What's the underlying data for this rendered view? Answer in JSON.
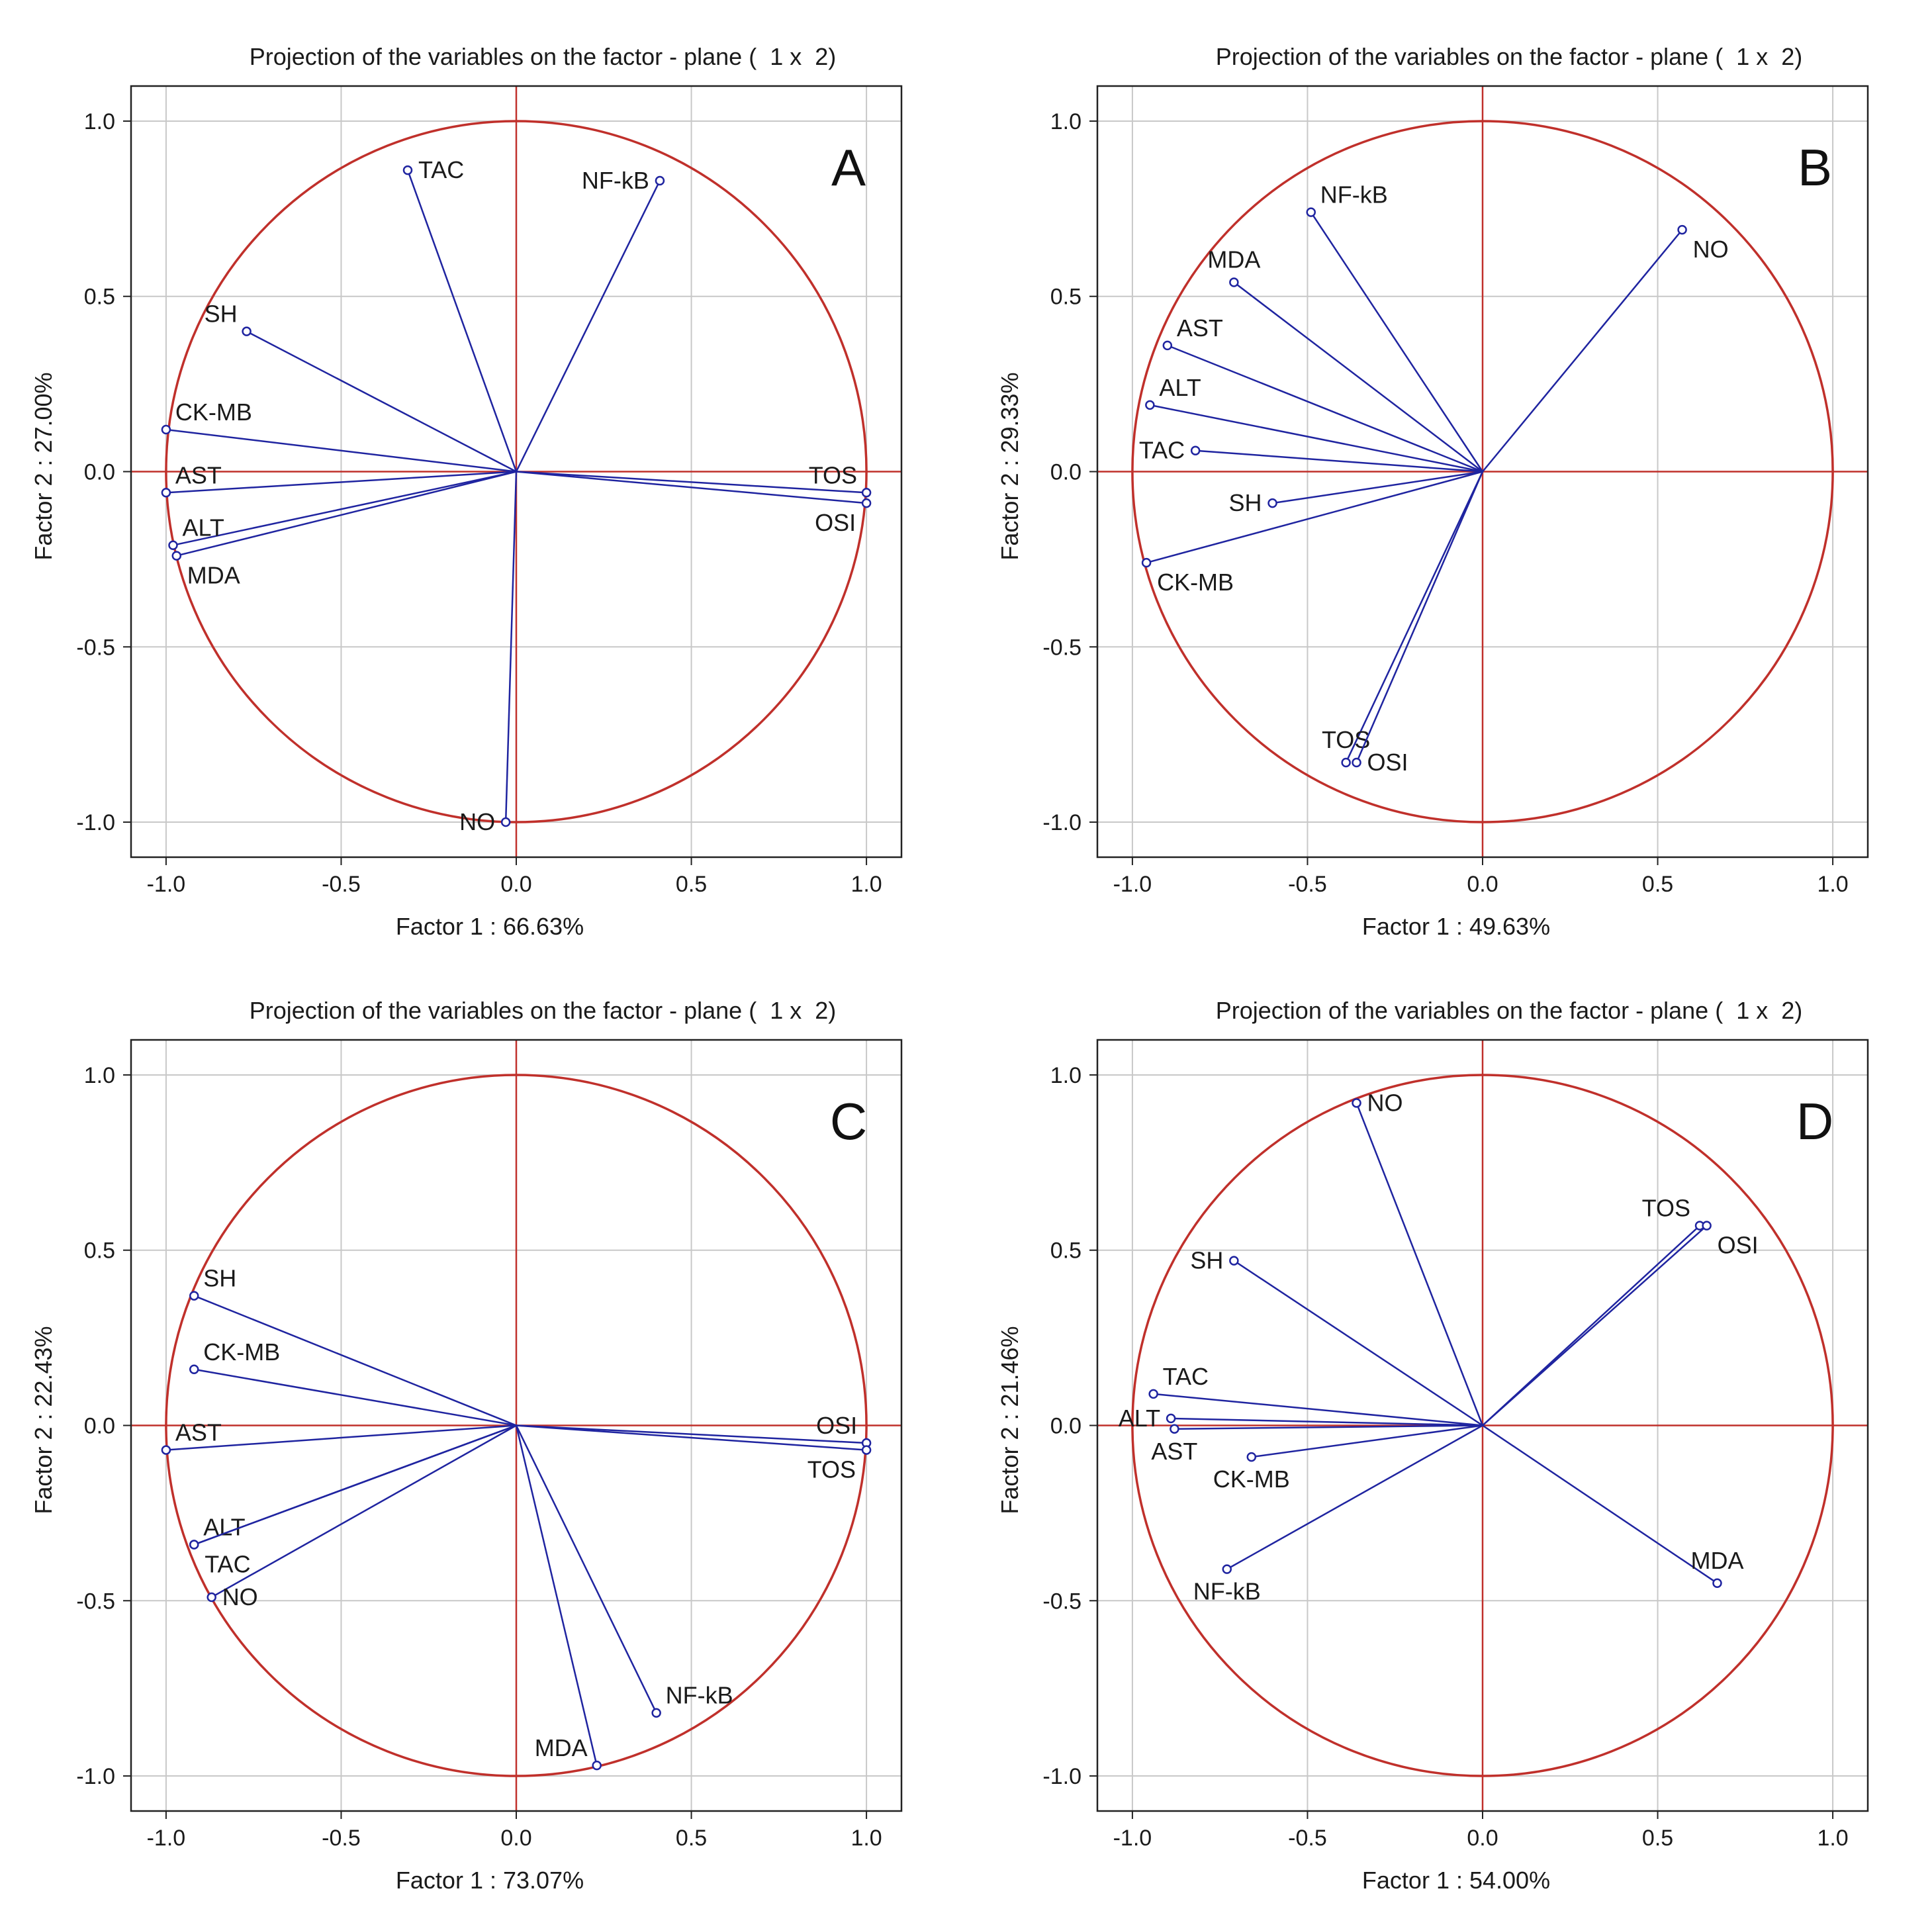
{
  "colors": {
    "circle": "#c0302b",
    "vector": "#1f24a0",
    "grid": "#c8c8c8",
    "frame": "#222222"
  },
  "chart_data": [
    {
      "type": "scatter",
      "subtype": "correlation-circle",
      "panel_label": "A",
      "title": "Projection of the variables on the factor - plane (  1 x  2)",
      "xlabel": "Factor 1 : 66.63%",
      "ylabel": "Factor 2 : 27.00%",
      "xlim": [
        -1.1,
        1.1
      ],
      "ylim": [
        -1.1,
        1.1
      ],
      "xticks": [
        "-1.0",
        "-0.5",
        "0.0",
        "0.5",
        "1.0"
      ],
      "yticks": [
        "1.0",
        "0.5",
        "0.0",
        "-0.5",
        "-1.0"
      ],
      "grid": true,
      "variables": [
        {
          "name": "TAC",
          "x": -0.31,
          "y": 0.86,
          "label_pos": "right"
        },
        {
          "name": "NF-kB",
          "x": 0.41,
          "y": 0.83,
          "label_pos": "left"
        },
        {
          "name": "SH",
          "x": -0.77,
          "y": 0.4,
          "label_pos": "above-left"
        },
        {
          "name": "CK-MB",
          "x": -1.0,
          "y": 0.12,
          "label_pos": "above-right"
        },
        {
          "name": "AST",
          "x": -1.0,
          "y": -0.06,
          "label_pos": "above-right"
        },
        {
          "name": "ALT",
          "x": -0.98,
          "y": -0.21,
          "label_pos": "above-right"
        },
        {
          "name": "MDA",
          "x": -0.97,
          "y": -0.24,
          "label_pos": "below-right"
        },
        {
          "name": "TOS",
          "x": 1.0,
          "y": -0.06,
          "label_pos": "above-left"
        },
        {
          "name": "OSI",
          "x": 1.0,
          "y": -0.09,
          "label_pos": "below-left"
        },
        {
          "name": "NO",
          "x": -0.03,
          "y": -1.0,
          "label_pos": "left"
        }
      ]
    },
    {
      "type": "scatter",
      "subtype": "correlation-circle",
      "panel_label": "B",
      "title": "Projection of the variables on the factor - plane (  1 x  2)",
      "xlabel": "Factor 1 : 49.63%",
      "ylabel": "Factor 2 : 29.33%",
      "xlim": [
        -1.1,
        1.1
      ],
      "ylim": [
        -1.1,
        1.1
      ],
      "xticks": [
        "-1.0",
        "-0.5",
        "0.0",
        "0.5",
        "1.0"
      ],
      "yticks": [
        "1.0",
        "0.5",
        "0.0",
        "-0.5",
        "-1.0"
      ],
      "grid": true,
      "variables": [
        {
          "name": "NF-kB",
          "x": -0.49,
          "y": 0.74,
          "label_pos": "above-right"
        },
        {
          "name": "NO",
          "x": 0.57,
          "y": 0.69,
          "label_pos": "below-right"
        },
        {
          "name": "MDA",
          "x": -0.71,
          "y": 0.54,
          "label_pos": "above"
        },
        {
          "name": "AST",
          "x": -0.9,
          "y": 0.36,
          "label_pos": "above-right"
        },
        {
          "name": "ALT",
          "x": -0.95,
          "y": 0.19,
          "label_pos": "above-right"
        },
        {
          "name": "TAC",
          "x": -0.82,
          "y": 0.06,
          "label_pos": "left"
        },
        {
          "name": "SH",
          "x": -0.6,
          "y": -0.09,
          "label_pos": "left"
        },
        {
          "name": "CK-MB",
          "x": -0.96,
          "y": -0.26,
          "label_pos": "below-right"
        },
        {
          "name": "TOS",
          "x": -0.39,
          "y": -0.83,
          "label_pos": "above"
        },
        {
          "name": "OSI",
          "x": -0.36,
          "y": -0.83,
          "label_pos": "right"
        }
      ]
    },
    {
      "type": "scatter",
      "subtype": "correlation-circle",
      "panel_label": "C",
      "title": "Projection of the variables on the factor - plane (  1 x  2)",
      "xlabel": "Factor 1 : 73.07%",
      "ylabel": "Factor 2 : 22.43%",
      "xlim": [
        -1.1,
        1.1
      ],
      "ylim": [
        -1.1,
        1.1
      ],
      "xticks": [
        "-1.0",
        "-0.5",
        "0.0",
        "0.5",
        "1.0"
      ],
      "yticks": [
        "1.0",
        "0.5",
        "0.0",
        "-0.5",
        "-1.0"
      ],
      "grid": true,
      "variables": [
        {
          "name": "SH",
          "x": -0.92,
          "y": 0.37,
          "label_pos": "above-right"
        },
        {
          "name": "CK-MB",
          "x": -0.92,
          "y": 0.16,
          "label_pos": "above-right"
        },
        {
          "name": "AST",
          "x": -1.0,
          "y": -0.07,
          "label_pos": "above-right"
        },
        {
          "name": "OSI",
          "x": 1.0,
          "y": -0.05,
          "label_pos": "above-left"
        },
        {
          "name": "TOS",
          "x": 1.0,
          "y": -0.07,
          "label_pos": "below-left"
        },
        {
          "name": "ALT",
          "x": -0.92,
          "y": -0.34,
          "label_pos": "above-right"
        },
        {
          "name": "TAC",
          "x": -0.92,
          "y": -0.34,
          "label_pos": "below-right"
        },
        {
          "name": "NO",
          "x": -0.87,
          "y": -0.49,
          "label_pos": "right"
        },
        {
          "name": "NF-kB",
          "x": 0.4,
          "y": -0.82,
          "label_pos": "above-right"
        },
        {
          "name": "MDA",
          "x": 0.23,
          "y": -0.97,
          "label_pos": "above-left"
        }
      ]
    },
    {
      "type": "scatter",
      "subtype": "correlation-circle",
      "panel_label": "D",
      "title": "Projection of the variables on the factor - plane (  1 x  2)",
      "xlabel": "Factor 1 : 54.00%",
      "ylabel": "Factor 2 : 21.46%",
      "xlim": [
        -1.1,
        1.1
      ],
      "ylim": [
        -1.1,
        1.1
      ],
      "xticks": [
        "-1.0",
        "-0.5",
        "0.0",
        "0.5",
        "1.0"
      ],
      "yticks": [
        "1.0",
        "0.5",
        "0.0",
        "-0.5",
        "-1.0"
      ],
      "grid": true,
      "variables": [
        {
          "name": "NO",
          "x": -0.36,
          "y": 0.92,
          "label_pos": "right"
        },
        {
          "name": "TOS",
          "x": 0.62,
          "y": 0.57,
          "label_pos": "above-left"
        },
        {
          "name": "OSI",
          "x": 0.64,
          "y": 0.57,
          "label_pos": "below-right"
        },
        {
          "name": "SH",
          "x": -0.71,
          "y": 0.47,
          "label_pos": "left"
        },
        {
          "name": "TAC",
          "x": -0.94,
          "y": 0.09,
          "label_pos": "above-right"
        },
        {
          "name": "ALT",
          "x": -0.89,
          "y": 0.02,
          "label_pos": "left"
        },
        {
          "name": "AST",
          "x": -0.88,
          "y": -0.01,
          "label_pos": "below"
        },
        {
          "name": "CK-MB",
          "x": -0.66,
          "y": -0.09,
          "label_pos": "below"
        },
        {
          "name": "NF-kB",
          "x": -0.73,
          "y": -0.41,
          "label_pos": "below"
        },
        {
          "name": "MDA",
          "x": 0.67,
          "y": -0.45,
          "label_pos": "above"
        }
      ]
    }
  ]
}
